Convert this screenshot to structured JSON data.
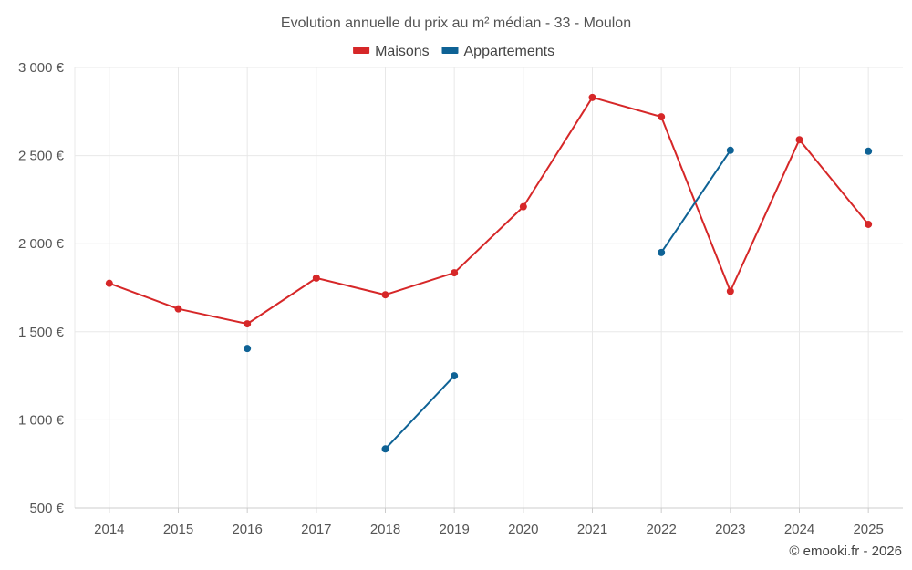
{
  "chart_data": {
    "type": "line",
    "title": "Evolution annuelle du prix au m² médian - 33 - Moulon",
    "categories": [
      "2014",
      "2015",
      "2016",
      "2017",
      "2018",
      "2019",
      "2020",
      "2021",
      "2022",
      "2023",
      "2024",
      "2025"
    ],
    "series": [
      {
        "name": "Maisons",
        "color": "#d62728",
        "values": [
          1775,
          1630,
          1545,
          1805,
          1710,
          1835,
          2210,
          2830,
          2720,
          1730,
          2590,
          2110
        ]
      },
      {
        "name": "Appartements",
        "color": "#0e6295",
        "values": [
          null,
          null,
          1405,
          null,
          835,
          1250,
          null,
          null,
          1950,
          2530,
          null,
          2525
        ]
      }
    ],
    "ylim": [
      500,
      3000
    ],
    "yticks": [
      500,
      1000,
      1500,
      2000,
      2500,
      3000
    ],
    "ytick_labels": [
      "500 €",
      "1 000 €",
      "1 500 €",
      "2 000 €",
      "2 500 €",
      "3 000 €"
    ],
    "xlabel": "",
    "ylabel": "",
    "grid": true,
    "legend_position": "top-center"
  },
  "credit": "© emooki.fr - 2026"
}
